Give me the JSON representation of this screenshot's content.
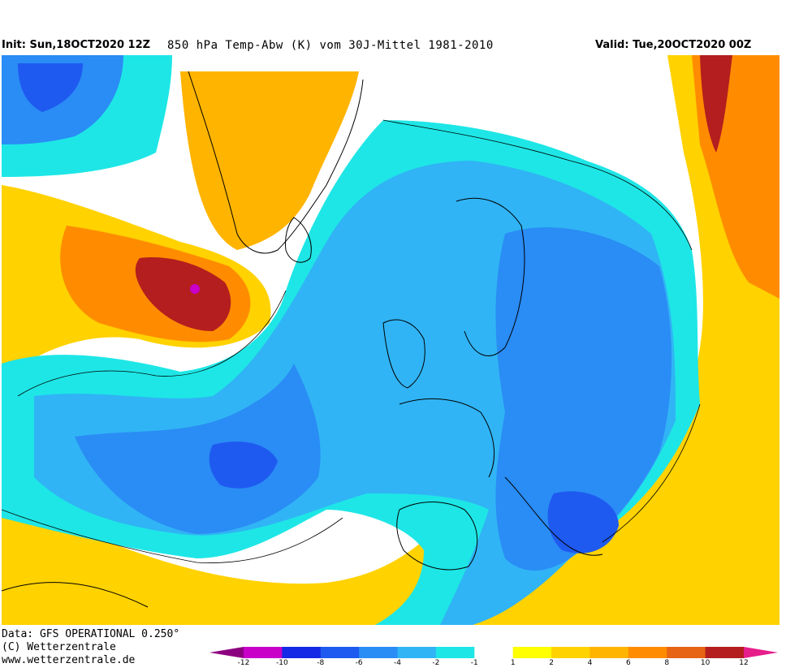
{
  "header": {
    "init": "Init: Sun,18OCT2020 12Z",
    "title": "850 hPa Temp-Abw (K) vom 30J-Mittel 1981-2010",
    "valid": "Valid: Tue,20OCT2020 00Z"
  },
  "footer": {
    "data_source": "Data: GFS OPERATIONAL 0.250°",
    "copyright": "(C) Wetterzentrale",
    "website": "www.wetterzentrale.de"
  },
  "legend": {
    "ticks": [
      "-12",
      "-10",
      "-8",
      "-6",
      "-4",
      "-2",
      "-1",
      "1",
      "2",
      "4",
      "6",
      "8",
      "10",
      "12"
    ],
    "colors": [
      "#c800c8",
      "#1428e6",
      "#1e5af0",
      "#2a8cf5",
      "#30b4f5",
      "#1ee6e6",
      "#ffffff",
      "#ffff00",
      "#ffd200",
      "#ffb400",
      "#ff8c00",
      "#e66414",
      "#b41e1e"
    ],
    "end_low_color": "#8c0080",
    "end_high_color": "#e61e8c"
  }
}
